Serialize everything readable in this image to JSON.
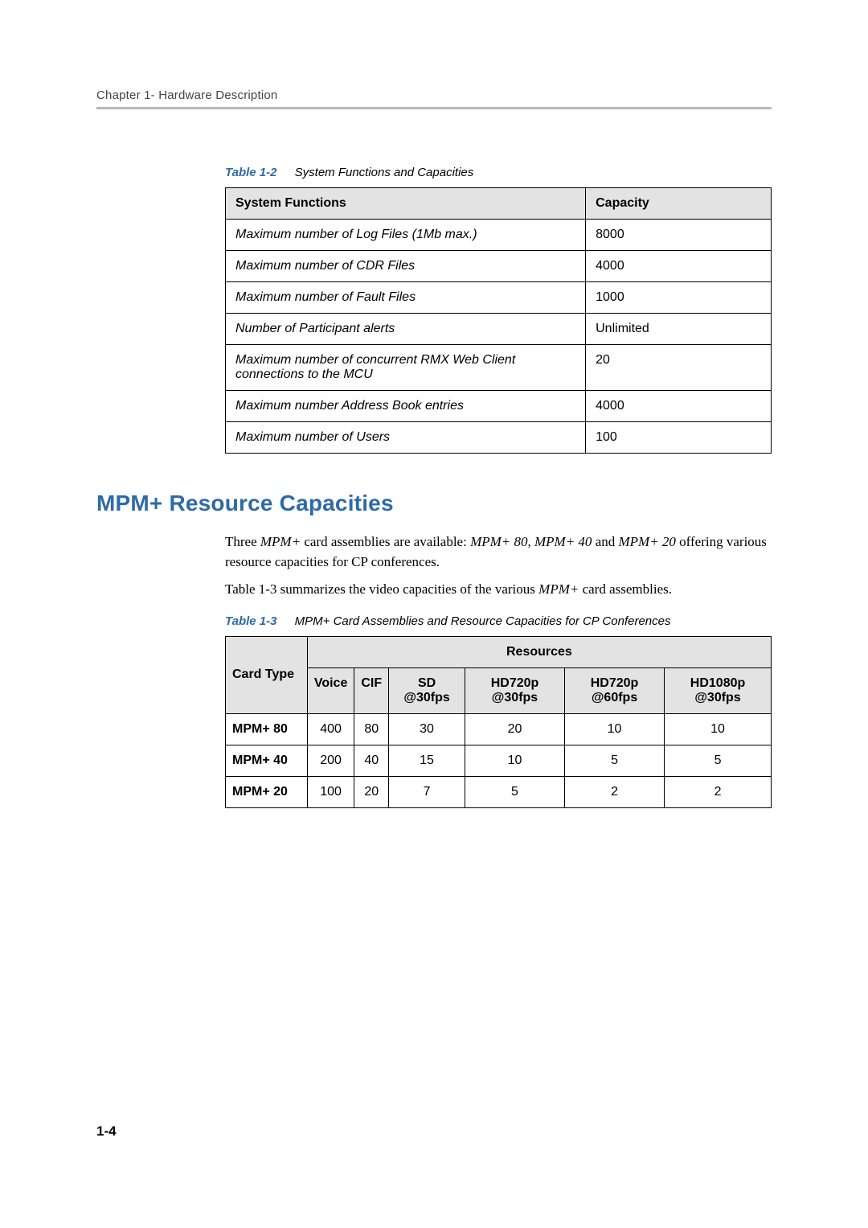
{
  "header": {
    "chapter_line": "Chapter 1- Hardware Description"
  },
  "table1": {
    "caption_num": "Table 1-2",
    "caption_text": "System Functions and Capacities",
    "col_functions": "System Functions",
    "col_capacity": "Capacity",
    "rows": [
      {
        "func": "Maximum number of Log Files (1Mb max.)",
        "cap": "8000"
      },
      {
        "func": "Maximum number of CDR Files",
        "cap": "4000"
      },
      {
        "func": "Maximum number of Fault Files",
        "cap": "1000"
      },
      {
        "func": "Number of Participant alerts",
        "cap": "Unlimited"
      },
      {
        "func": "Maximum number of concurrent RMX Web Client connections to the MCU",
        "cap": "20"
      },
      {
        "func": "Maximum number Address Book entries",
        "cap": "4000"
      },
      {
        "func": "Maximum number of Users",
        "cap": "100"
      }
    ]
  },
  "section": {
    "title": "MPM+ Resource Capacities",
    "para1_a": "Three ",
    "para1_b": "MPM+",
    "para1_c": " card assemblies are available: ",
    "para1_d": "MPM+ 80",
    "para1_e": ", ",
    "para1_f": "MPM+ 40",
    "para1_g": " and ",
    "para1_h": "MPM+ 20",
    "para1_i": " offering various resource capacities for CP conferences.",
    "para2_a": "Table 1-3 summarizes the video capacities of the various ",
    "para2_b": "MPM+",
    "para2_c": " card assemblies."
  },
  "table2": {
    "caption_num": "Table 1-3",
    "caption_text": "MPM+ Card Assemblies and Resource Capacities for CP Conferences",
    "head_card": "Card Type",
    "head_resources": "Resources",
    "cols": {
      "voice": "Voice",
      "cif": "CIF",
      "sd": "SD @30fps",
      "hd720_30": "HD720p @30fps",
      "hd720_60": "HD720p @60fps",
      "hd1080_30": "HD1080p @30fps"
    },
    "rows": [
      {
        "card": "MPM+ 80",
        "voice": "400",
        "cif": "80",
        "sd": "30",
        "hd720_30": "20",
        "hd720_60": "10",
        "hd1080_30": "10"
      },
      {
        "card": "MPM+ 40",
        "voice": "200",
        "cif": "40",
        "sd": "15",
        "hd720_30": "10",
        "hd720_60": "5",
        "hd1080_30": "5"
      },
      {
        "card": "MPM+ 20",
        "voice": "100",
        "cif": "20",
        "sd": "7",
        "hd720_30": "5",
        "hd720_60": "2",
        "hd1080_30": "2"
      }
    ]
  },
  "page_number": "1-4"
}
